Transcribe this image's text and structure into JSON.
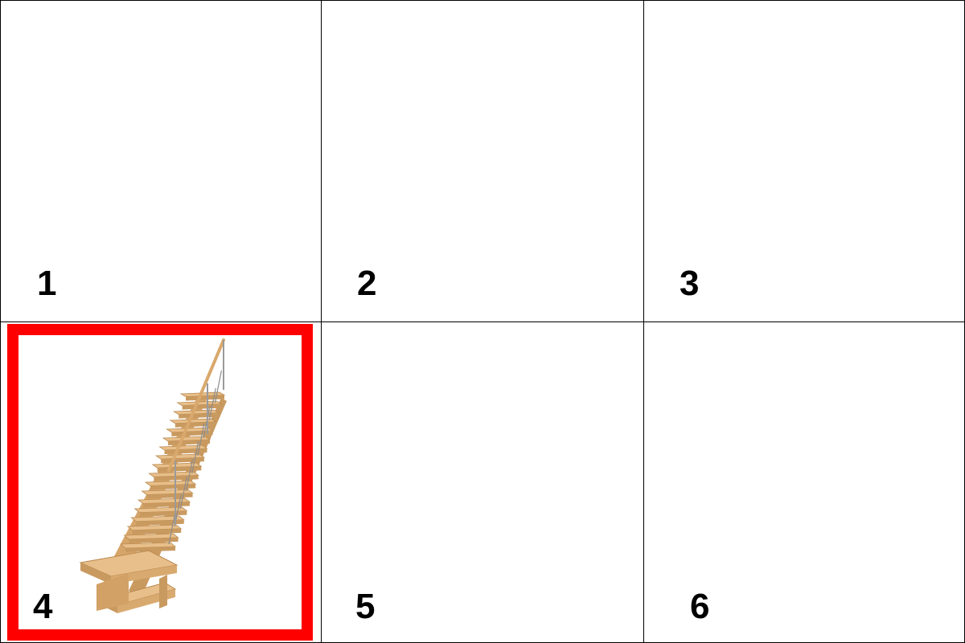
{
  "grid": {
    "cells": [
      {
        "label": "1"
      },
      {
        "label": "2"
      },
      {
        "label": "3"
      },
      {
        "label": "4"
      },
      {
        "label": "5"
      },
      {
        "label": "6"
      }
    ],
    "selected_cell": "4"
  },
  "colors": {
    "highlight": "#ff0000",
    "border": "#000000",
    "wood": "#e2b57e"
  },
  "icons": {
    "cell_4_image": "wooden-staircase-icon"
  }
}
